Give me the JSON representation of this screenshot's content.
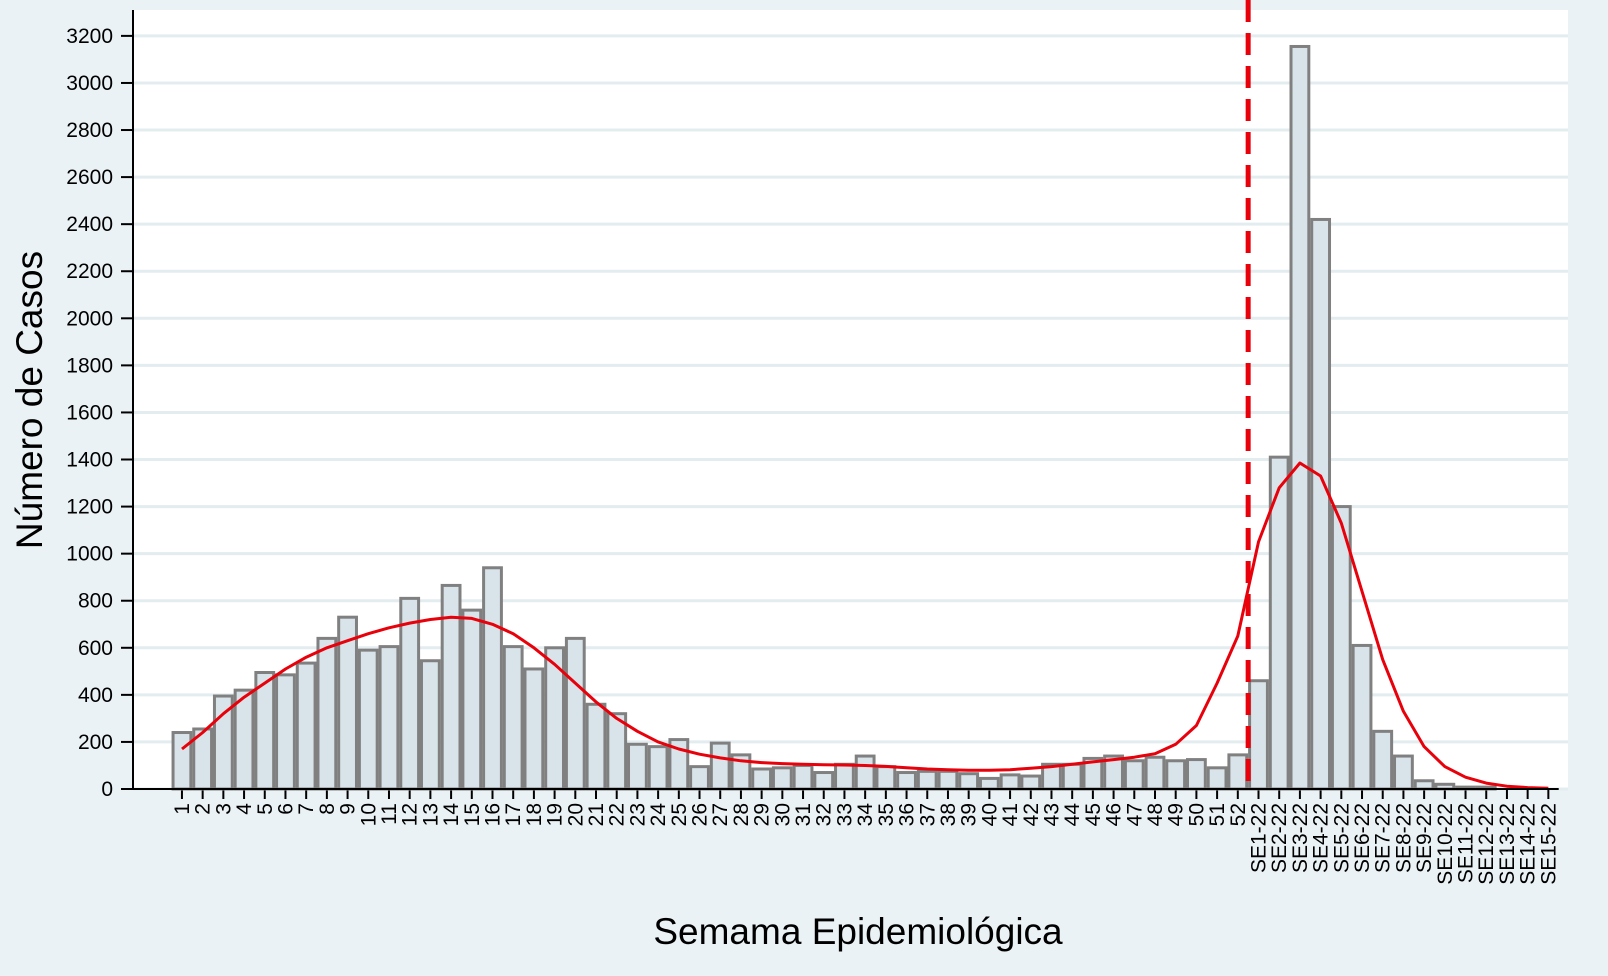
{
  "chart_data": {
    "type": "bar",
    "x_label": "Semama Epidemiológica",
    "y_label": "Número de Casos",
    "categories": [
      "1",
      "2",
      "3",
      "4",
      "5",
      "6",
      "7",
      "8",
      "9",
      "10",
      "11",
      "12",
      "13",
      "14",
      "15",
      "16",
      "17",
      "18",
      "19",
      "20",
      "21",
      "22",
      "23",
      "24",
      "25",
      "26",
      "27",
      "28",
      "29",
      "30",
      "31",
      "32",
      "33",
      "34",
      "35",
      "36",
      "37",
      "38",
      "39",
      "40",
      "41",
      "42",
      "43",
      "44",
      "45",
      "46",
      "47",
      "48",
      "49",
      "50",
      "51",
      "52",
      "SE1-22",
      "SE2-22",
      "SE3-22",
      "SE4-22",
      "SE5-22",
      "SE6-22",
      "SE7-22",
      "SE8-22",
      "SE9-22",
      "SE10-22",
      "SE11-22",
      "SE12-22",
      "SE13-22",
      "SE14-22",
      "SE15-22"
    ],
    "series": [
      {
        "type": "bar",
        "color": "#d9e4ea",
        "edge_color": "#808080",
        "values": [
          240,
          255,
          395,
          420,
          495,
          485,
          535,
          640,
          730,
          590,
          605,
          810,
          545,
          865,
          760,
          940,
          605,
          510,
          600,
          640,
          360,
          320,
          190,
          180,
          210,
          95,
          195,
          145,
          85,
          90,
          100,
          70,
          105,
          140,
          95,
          70,
          75,
          75,
          65,
          45,
          60,
          55,
          105,
          105,
          130,
          140,
          120,
          135,
          120,
          125,
          90,
          145,
          460,
          1410,
          3155,
          2420,
          1200,
          610,
          245,
          140,
          35,
          20,
          8,
          8,
          0,
          0,
          0
        ]
      },
      {
        "type": "line",
        "color": "#e8000b",
        "values": [
          170,
          240,
          320,
          390,
          450,
          510,
          560,
          600,
          630,
          660,
          685,
          705,
          720,
          730,
          725,
          700,
          660,
          600,
          530,
          450,
          370,
          300,
          245,
          200,
          170,
          148,
          132,
          120,
          112,
          108,
          105,
          103,
          102,
          100,
          96,
          90,
          85,
          82,
          80,
          80,
          82,
          88,
          95,
          105,
          115,
          125,
          135,
          150,
          190,
          270,
          450,
          650,
          1050,
          1280,
          1385,
          1330,
          1130,
          840,
          550,
          330,
          180,
          95,
          50,
          25,
          12,
          6,
          3
        ]
      }
    ],
    "reference_line": {
      "between": [
        "52",
        "SE1-22"
      ],
      "color": "#e8000b",
      "dashed": true
    },
    "ylim": [
      0,
      3310
    ],
    "yticks": [
      0,
      200,
      400,
      600,
      800,
      1000,
      1200,
      1400,
      1600,
      1800,
      2000,
      2200,
      2400,
      2600,
      2800,
      3000,
      3200
    ],
    "grid": true
  }
}
